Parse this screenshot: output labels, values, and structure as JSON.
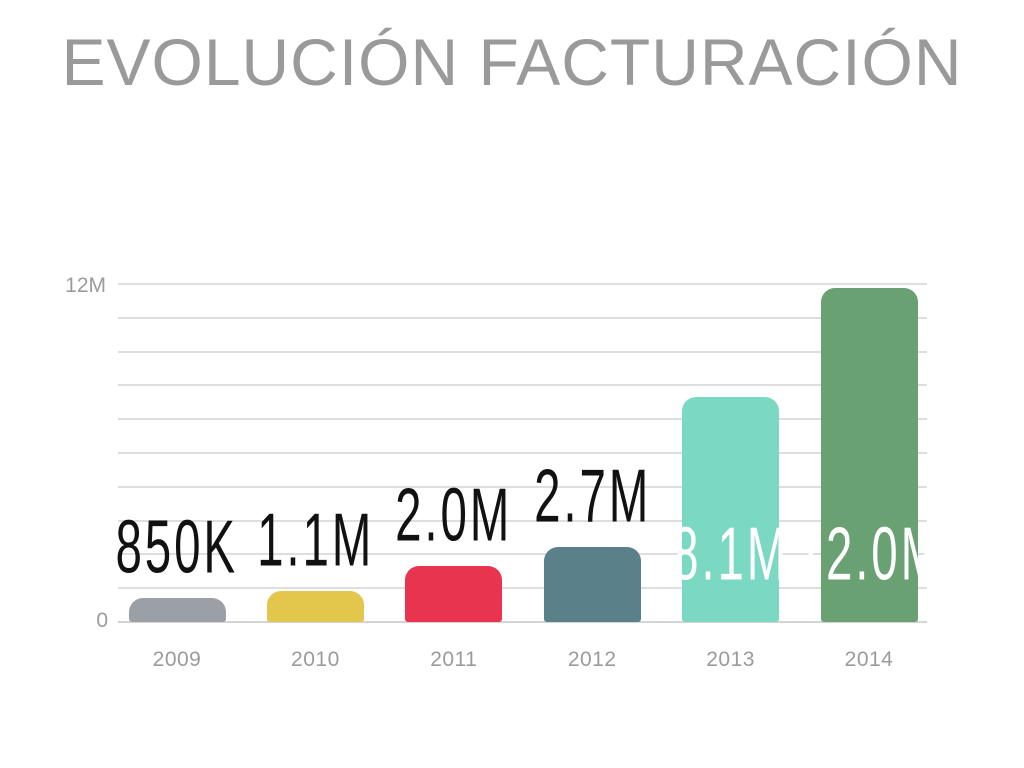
{
  "slide": {
    "title": "EVOLUCIÓN FACTURACIÓN",
    "title_color": "#9a9a9a",
    "background": "#ffffff"
  },
  "chart_data": {
    "type": "bar",
    "title": "EVOLUCIÓN FACTURACIÓN",
    "categories": [
      "2009",
      "2010",
      "2011",
      "2012",
      "2013",
      "2014"
    ],
    "values": [
      850000,
      1100000,
      2000000,
      2700000,
      8100000,
      12000000
    ],
    "value_labels": [
      "850K",
      "1.1M",
      "2.0M",
      "2.7M",
      "8.1M",
      "12.0M"
    ],
    "label_placement": [
      "above",
      "above",
      "above",
      "above",
      "inside",
      "inside"
    ],
    "label_colors": [
      "#111111",
      "#111111",
      "#111111",
      "#111111",
      "#ffffff",
      "#ffffff"
    ],
    "bar_colors": [
      "#9aa0a5",
      "#e3c64c",
      "#e8344f",
      "#5a8189",
      "#7bd8c2",
      "#6aa173"
    ],
    "xlabel": "",
    "ylabel": "",
    "ylim": [
      0,
      12000000
    ],
    "yticks": [
      {
        "value": 12000000,
        "label": "12M"
      },
      {
        "value": 0,
        "label": "0"
      }
    ],
    "grid": true,
    "gridline_count": 11,
    "gridline_color": "#dedede",
    "axis_text_color": "#9b9b9b",
    "legend": false
  }
}
